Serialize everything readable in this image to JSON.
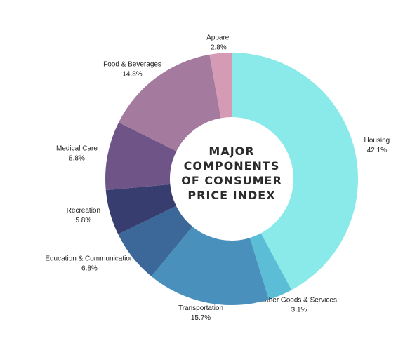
{
  "chart_data": {
    "type": "donut",
    "title": "MAJOR COMPONENTS OF CONSUMER PRICE INDEX",
    "categories": [
      "Housing",
      "Other Goods & Services",
      "Transportation",
      "Education & Communication",
      "Recreation",
      "Medical Care",
      "Food & Beverages",
      "Apparel"
    ],
    "values": [
      42.1,
      3.1,
      15.7,
      6.8,
      5.8,
      8.8,
      14.8,
      2.8
    ],
    "value_labels": [
      "42.1%",
      "3.1%",
      "15.7%",
      "6.8%",
      "5.8%",
      "8.8%",
      "14.8%",
      "2.8%"
    ],
    "colors": [
      "#8aeae9",
      "#5bbdd6",
      "#4a90bc",
      "#3b6898",
      "#373d6f",
      "#6f5587",
      "#a47a9f",
      "#d59bb4"
    ]
  }
}
